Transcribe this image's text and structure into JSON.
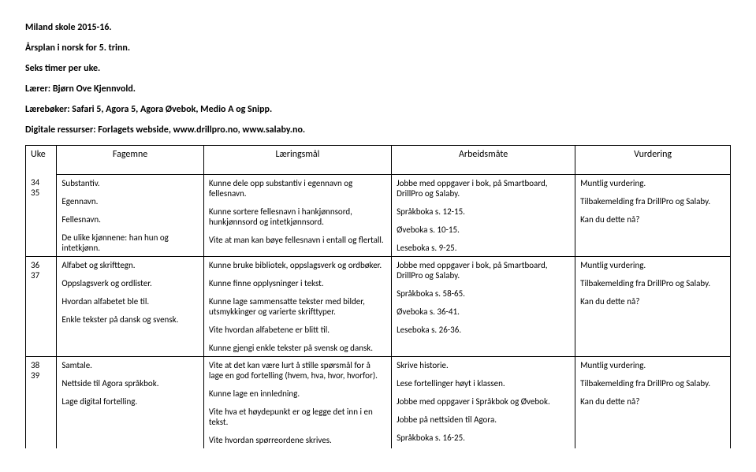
{
  "header": {
    "school": "Miland skole 2015-16.",
    "plan": "Årsplan i norsk for 5. trinn.",
    "hours": "Seks timer per uke.",
    "teacher": "Lærer: Bjørn Ove Kjennvold.",
    "textbooks": "Lærebøker: Safari 5, Agora 5, Agora Øvebok, Medio A og Snipp.",
    "resources": "Digitale ressurser: Forlagets webside, www.drillpro.no, www.salaby.no."
  },
  "table": {
    "columns": {
      "uke": "Uke",
      "fagemne": "Fagemne",
      "laringsmal": "Læringsmål",
      "arbeidsmate": "Arbeidsmåte",
      "vurdering": "Vurdering"
    },
    "rows": [
      {
        "uke": [
          "34",
          "35"
        ],
        "fagemne": [
          "Substantiv.",
          "Egennavn.",
          "Fellesnavn.",
          "De ulike kjønnene: han hun og intetkjønn."
        ],
        "laringsmal": [
          "Kunne dele opp substantiv i egennavn og fellesnavn.",
          "Kunne sortere fellesnavn i hankjønnsord, hunkjønnsord og intetkjønnsord.",
          "Vite at man kan bøye fellesnavn i entall og flertall."
        ],
        "arbeidsmate": [
          "Jobbe med oppgaver i bok, på Smartboard, DrillPro og Salaby.",
          "Språkboka s. 12-15.",
          "Øveboka s. 10-15.",
          "Leseboka s. 9-25."
        ],
        "vurdering": [
          "Muntlig vurdering.",
          "Tilbakemelding fra DrillPro og Salaby.",
          "Kan du dette nå?"
        ]
      },
      {
        "uke": [
          "36",
          "37"
        ],
        "fagemne": [
          "Alfabet og skrifttegn.",
          "Oppslagsverk og ordlister.",
          "Hvordan alfabetet ble til.",
          "Enkle tekster på dansk og svensk."
        ],
        "laringsmal": [
          "Kunne bruke bibliotek, oppslagsverk og ordbøker.",
          "Kunne finne opplysninger i tekst.",
          "Kunne lage sammensatte tekster med bilder, utsmykkinger og varierte skrifttyper.",
          "Vite hvordan alfabetene er blitt til.",
          "Kunne gjengi enkle tekster på svensk og dansk."
        ],
        "arbeidsmate": [
          "Jobbe med oppgaver i bok, på Smartboard, DrillPro og Salaby.",
          "Språkboka s. 58-65.",
          "Øveboka s. 36-41.",
          "Leseboka s. 26-36."
        ],
        "vurdering": [
          "Muntlig vurdering.",
          "Tilbakemelding fra DrillPro og Salaby.",
          "Kan du dette nå?"
        ]
      },
      {
        "uke": [
          "38",
          "39"
        ],
        "fagemne": [
          "Samtale.",
          "Nettside til Agora språkbok.",
          "Lage digital fortelling."
        ],
        "laringsmal": [
          "Vite at det kan være lurt å stille spørsmål for å lage en god fortelling (hvem, hva, hvor, hvorfor).",
          "Kunne lage en innledning.",
          "Vite hva et høydepunkt er og legge det inn i en tekst.",
          "Vite hvordan spørreordene skrives."
        ],
        "arbeidsmate": [
          "Skrive historie.",
          "Lese fortellinger høyt i klassen.",
          "Jobbe med oppgaver i Språkbok og Øvebok.",
          "Jobbe på nettsiden til Agora.",
          "Språkboka s. 16-25."
        ],
        "vurdering": [
          "Muntlig vurdering.",
          "Tilbakemelding fra DrillPro og Salaby.",
          "Kan du dette nå?"
        ]
      }
    ]
  }
}
